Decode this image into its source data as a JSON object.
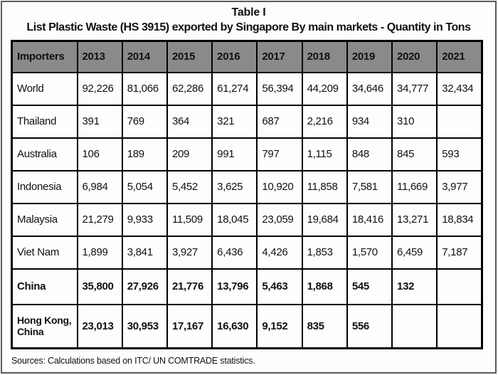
{
  "title": "Table I",
  "subtitle": "List Plastic Waste (HS 3915) exported by Singapore By main markets - Quantity in Tons",
  "source_note": "Sources: Calculations based on ITC/ UN COMTRADE statistics.",
  "colors": {
    "header_background": "#8a8a8a",
    "border": "#000000",
    "frame_border": "#5a5a5a"
  },
  "table": {
    "columns": [
      "Importers",
      "2013",
      "2014",
      "2015",
      "2016",
      "2017",
      "2018",
      "2019",
      "2020",
      "2021"
    ],
    "rows": [
      {
        "label": "World",
        "bold": false,
        "tall": false,
        "values": [
          "92,226",
          "81,066",
          "62,286",
          "61,274",
          "56,394",
          "44,209",
          "34,646",
          "34,777",
          "32,434"
        ]
      },
      {
        "label": "Thailand",
        "bold": false,
        "tall": false,
        "values": [
          "391",
          "769",
          "364",
          "321",
          "687",
          "2,216",
          "934",
          "310",
          ""
        ]
      },
      {
        "label": "Australia",
        "bold": false,
        "tall": false,
        "values": [
          "106",
          "189",
          "209",
          "991",
          "797",
          "1,115",
          "848",
          "845",
          "593"
        ]
      },
      {
        "label": "Indonesia",
        "bold": false,
        "tall": false,
        "values": [
          "6,984",
          "5,054",
          "5,452",
          "3,625",
          "10,920",
          "11,858",
          "7,581",
          "11,669",
          "3,977"
        ]
      },
      {
        "label": "Malaysia",
        "bold": false,
        "tall": false,
        "values": [
          "21,279",
          "9,933",
          "11,509",
          "18,045",
          "23,059",
          "19,684",
          "18,416",
          "13,271",
          "18,834"
        ]
      },
      {
        "label": "Viet Nam",
        "bold": false,
        "tall": false,
        "values": [
          "1,899",
          "3,841",
          "3,927",
          "6,436",
          "4,426",
          "1,853",
          "1,570",
          "6,459",
          "7,187"
        ]
      },
      {
        "label": "China",
        "bold": true,
        "tall": false,
        "values": [
          "35,800",
          "27,926",
          "21,776",
          "13,796",
          "5,463",
          "1,868",
          "545",
          "132",
          ""
        ]
      },
      {
        "label": "Hong Kong, China",
        "bold": true,
        "tall": true,
        "values": [
          "23,013",
          "30,953",
          "17,167",
          "16,630",
          "9,152",
          "835",
          "556",
          "",
          ""
        ]
      }
    ]
  }
}
